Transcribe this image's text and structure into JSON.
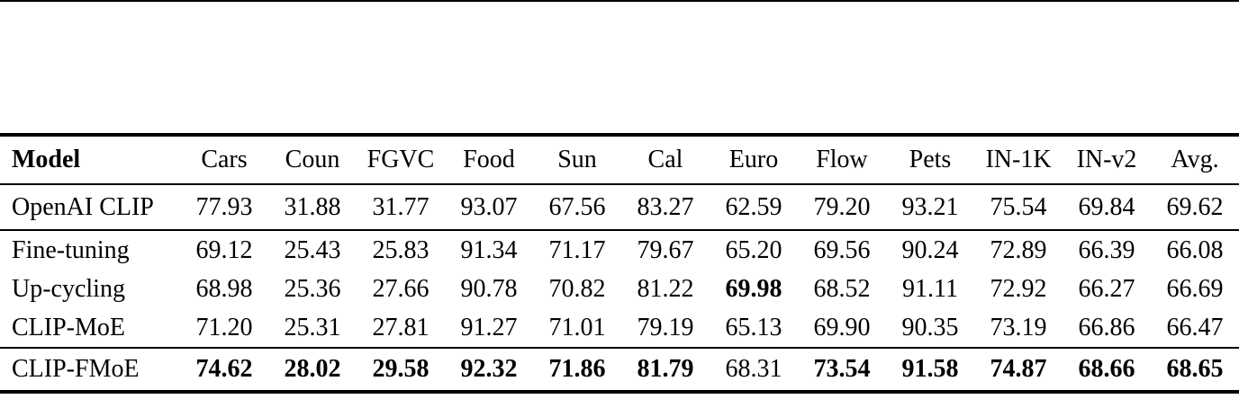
{
  "colors": {
    "text": "#000000",
    "background": "#ffffff",
    "rule": "#000000"
  },
  "table": {
    "columns": [
      "Model",
      "Cars",
      "Coun",
      "FGVC",
      "Food",
      "Sun",
      "Cal",
      "Euro",
      "Flow",
      "Pets",
      "IN-1K",
      "IN-v2",
      "Avg."
    ],
    "groups": [
      {
        "rows": [
          {
            "cells": [
              "OpenAI CLIP",
              "77.93",
              "31.88",
              "31.77",
              "93.07",
              "67.56",
              "83.27",
              "62.59",
              "79.20",
              "93.21",
              "75.54",
              "69.84",
              "69.62"
            ],
            "bold": []
          }
        ]
      },
      {
        "rows": [
          {
            "cells": [
              "Fine-tuning",
              "69.12",
              "25.43",
              "25.83",
              "91.34",
              "71.17",
              "79.67",
              "65.20",
              "69.56",
              "90.24",
              "72.89",
              "66.39",
              "66.08"
            ],
            "bold": []
          },
          {
            "cells": [
              "Up-cycling",
              "68.98",
              "25.36",
              "27.66",
              "90.78",
              "70.82",
              "81.22",
              "69.98",
              "68.52",
              "91.11",
              "72.92",
              "66.27",
              "66.69"
            ],
            "bold": [
              7
            ]
          },
          {
            "cells": [
              "CLIP-MoE",
              "71.20",
              "25.31",
              "27.81",
              "91.27",
              "71.01",
              "79.19",
              "65.13",
              "69.90",
              "90.35",
              "73.19",
              "66.86",
              "66.47"
            ],
            "bold": []
          }
        ]
      },
      {
        "rows": [
          {
            "cells": [
              "CLIP-FMoE",
              "74.62",
              "28.02",
              "29.58",
              "92.32",
              "71.86",
              "81.79",
              "68.31",
              "73.54",
              "91.58",
              "74.87",
              "68.66",
              "68.65"
            ],
            "bold": [
              1,
              2,
              3,
              4,
              5,
              6,
              8,
              9,
              10,
              11,
              12
            ]
          }
        ]
      }
    ]
  }
}
